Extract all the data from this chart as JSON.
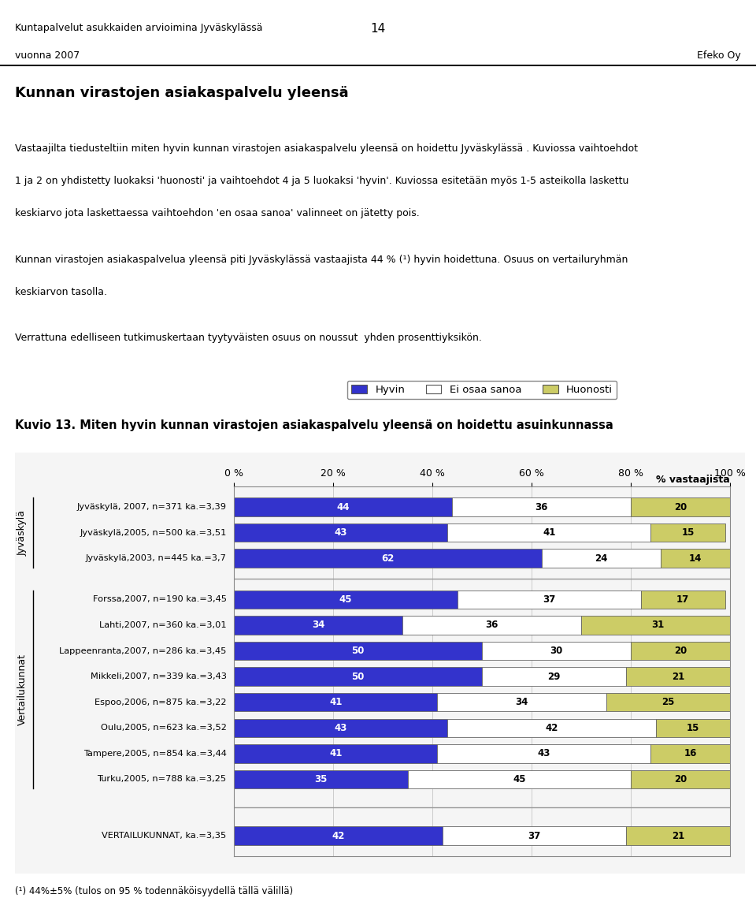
{
  "page_title_line1": "Kuntapalvelut asukkaiden arvioimina Jyväskylässä",
  "page_title_line2": "vuonna 2007",
  "page_number": "14",
  "company": "Efeko Oy",
  "section_title": "Kunnan virastojen asiakaspalvelu yleensä",
  "body_text": "Vastaajilta tiedusteltiin miten hyvin kunnan virastojen asiakaspalvelu yleensä on hoidettu Jyväskylässä . Kuviossa vaihtoehdot\n1 ja 2 on yhdistetty luokaksi 'huonosti' ja vaihtoehdot 4 ja 5 luokaksi 'hyvin'. Kuviossa esitetään myös 1-5 asteikolla laskettu\nkeskiarvo jota laskettaessa vaihtoehdon 'en osaa sanoa' valinneet on jätetty pois.",
  "body_text2": "Kunnan virastojen asiakaspalvelua yleensä piti Jyväskylässä vastaajista 44 % (¹) hyvin hoidettuna. Osuus on vertailuryhmän\nkeskiarvon tasolla.",
  "body_text3": "Verrattuna edelliseen tutkimuskertaan tyytyväisten osuus on noussut  yhden prosenttiyksikön.",
  "figure_title": "Kuvio 13. Miten hyvin kunnan virastojen asiakaspalvelu yleensä on hoidettu asuinkunnassa",
  "legend_labels": [
    "Hyvin",
    "Ei osaa sanoa",
    "Huonosti"
  ],
  "legend_colors": [
    "#3333cc",
    "#ffffff",
    "#cccc66"
  ],
  "xlabel": "% vastaajista",
  "xtick_labels": [
    "0 %",
    "20 %",
    "40 %",
    "60 %",
    "80 %",
    "100 %"
  ],
  "xtick_values": [
    0,
    20,
    40,
    60,
    80,
    100
  ],
  "group_label_jyv": "Jyväskylä",
  "group_label_vert": "Vertailukunnat",
  "categories": [
    "Jyväskylä, 2007, n=371 ka.=3,39",
    "Jyväskylä,2005, n=500 ka.=3,51",
    "Jyväskylä,2003, n=445 ka.=3,7",
    "Forssa,2007, n=190 ka.=3,45",
    "Lahti,2007, n=360 ka.=3,01",
    "Lappeenranta,2007, n=286 ka.=3,45",
    "Mikkeli,2007, n=339 ka.=3,43",
    "Espoo,2006, n=875 ka.=3,22",
    "Oulu,2005, n=623 ka.=3,52",
    "Tampere,2005, n=854 ka.=3,44",
    "Turku,2005, n=788 ka.=3,25",
    "VERTAILUKUNNAT, ka.=3,35"
  ],
  "hyvin": [
    44,
    43,
    62,
    45,
    34,
    50,
    50,
    41,
    43,
    41,
    35,
    42
  ],
  "ei_osaa_sanoa": [
    36,
    41,
    24,
    37,
    36,
    30,
    29,
    34,
    42,
    43,
    45,
    37
  ],
  "huonosti": [
    20,
    15,
    14,
    17,
    31,
    20,
    21,
    25,
    15,
    16,
    20,
    21
  ],
  "hyvin_color": "#3333cc",
  "ei_osaa_sanoa_color": "#ffffff",
  "huonosti_color": "#cccc66",
  "bar_edge_color": "#666666",
  "footnote": "(¹) 44%±5% (tulos on 95 % todennäköisyydellä tällä välillä)",
  "jyvaskyla_indices": [
    0,
    1,
    2
  ],
  "vertailu_indices": [
    3,
    4,
    5,
    6,
    7,
    8,
    9,
    10
  ],
  "vertailukunnat_index": 11,
  "background_color": "#ffffff"
}
